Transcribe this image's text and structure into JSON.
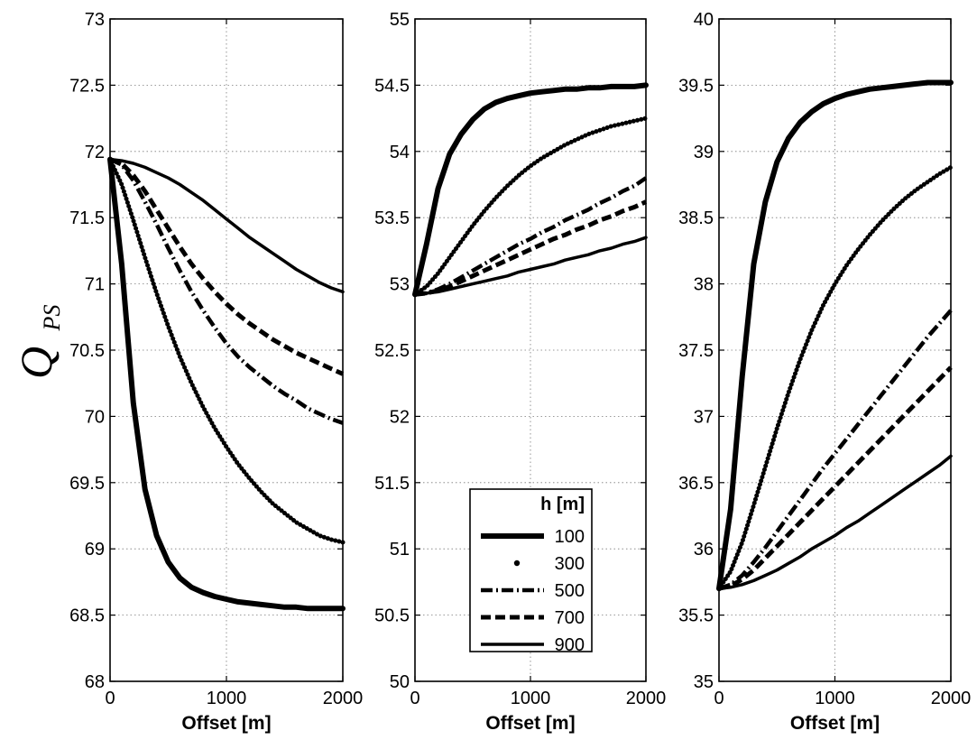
{
  "figure": {
    "y_label_main": "Q",
    "y_label_sub": "PS"
  },
  "colors": {
    "line": "#000000",
    "grid": "#7a7a7a",
    "background": "#ffffff"
  },
  "styles": {
    "100": "thick-solid",
    "300": "dotted",
    "500": "dash-dot",
    "700": "dashed",
    "900": "solid"
  },
  "chart_data": [
    {
      "type": "line",
      "xlabel": "Offset [m]",
      "ylabel": "Q PS",
      "xlim": [
        0,
        2000
      ],
      "ylim": [
        68,
        73
      ],
      "xticks": [
        0,
        1000,
        2000
      ],
      "xtick_labels": [
        "0",
        "1000",
        "2000"
      ],
      "yticks": [
        68,
        68.5,
        69,
        69.5,
        70,
        70.5,
        71,
        71.5,
        72,
        72.5,
        73
      ],
      "ytick_labels": [
        "68",
        "68.5",
        "69",
        "69.5",
        "70",
        "70.5",
        "71",
        "71.5",
        "72",
        "72.5",
        "73"
      ],
      "grid": true,
      "x": [
        0,
        100,
        200,
        300,
        400,
        500,
        600,
        700,
        800,
        900,
        1000,
        1100,
        1200,
        1300,
        1400,
        1500,
        1600,
        1700,
        1800,
        1900,
        2000
      ],
      "series": [
        {
          "name": "100",
          "values": [
            71.94,
            71.15,
            70.1,
            69.45,
            69.1,
            68.9,
            68.78,
            68.71,
            68.67,
            68.64,
            68.62,
            68.6,
            68.59,
            68.58,
            68.57,
            68.56,
            68.56,
            68.55,
            68.55,
            68.55,
            68.55
          ]
        },
        {
          "name": "300",
          "values": [
            71.94,
            71.75,
            71.48,
            71.2,
            70.93,
            70.68,
            70.45,
            70.25,
            70.07,
            69.91,
            69.77,
            69.64,
            69.53,
            69.43,
            69.34,
            69.27,
            69.2,
            69.15,
            69.1,
            69.07,
            69.05
          ]
        },
        {
          "name": "500",
          "values": [
            71.94,
            71.9,
            71.78,
            71.62,
            71.45,
            71.27,
            71.1,
            70.94,
            70.8,
            70.67,
            70.55,
            70.45,
            70.37,
            70.3,
            70.23,
            70.17,
            70.12,
            70.06,
            70.02,
            69.98,
            69.95
          ]
        },
        {
          "name": "700",
          "values": [
            71.94,
            71.91,
            71.82,
            71.7,
            71.56,
            71.42,
            71.28,
            71.15,
            71.04,
            70.94,
            70.85,
            70.77,
            70.7,
            70.64,
            70.58,
            70.53,
            70.48,
            70.44,
            70.4,
            70.36,
            70.32
          ]
        },
        {
          "name": "900",
          "values": [
            71.94,
            71.93,
            71.91,
            71.88,
            71.84,
            71.8,
            71.75,
            71.69,
            71.63,
            71.56,
            71.49,
            71.42,
            71.35,
            71.29,
            71.23,
            71.17,
            71.11,
            71.06,
            71.01,
            70.97,
            70.94
          ]
        }
      ]
    },
    {
      "type": "line",
      "xlabel": "Offset [m]",
      "xlim": [
        0,
        2000
      ],
      "ylim": [
        50,
        55
      ],
      "xticks": [
        0,
        1000,
        2000
      ],
      "xtick_labels": [
        "0",
        "1000",
        "2000"
      ],
      "yticks": [
        50,
        50.5,
        51,
        51.5,
        52,
        52.5,
        53,
        53.5,
        54,
        54.5,
        55
      ],
      "ytick_labels": [
        "50",
        "50.5",
        "51",
        "51.5",
        "52",
        "52.5",
        "53",
        "53.5",
        "54",
        "54.5",
        "55"
      ],
      "grid": true,
      "legend": {
        "title": "h [m]",
        "position": "lower-right"
      },
      "x": [
        0,
        100,
        200,
        300,
        400,
        500,
        600,
        700,
        800,
        900,
        1000,
        1100,
        1200,
        1300,
        1400,
        1500,
        1600,
        1700,
        1800,
        1900,
        2000
      ],
      "series": [
        {
          "name": "100",
          "values": [
            52.92,
            53.3,
            53.72,
            53.98,
            54.13,
            54.24,
            54.32,
            54.37,
            54.4,
            54.42,
            54.44,
            54.45,
            54.46,
            54.47,
            54.47,
            54.48,
            54.48,
            54.49,
            54.49,
            54.49,
            54.5
          ]
        },
        {
          "name": "300",
          "values": [
            52.92,
            52.98,
            53.08,
            53.2,
            53.32,
            53.44,
            53.55,
            53.65,
            53.74,
            53.82,
            53.89,
            53.95,
            54.0,
            54.05,
            54.09,
            54.13,
            54.16,
            54.19,
            54.21,
            54.23,
            54.25
          ]
        },
        {
          "name": "500",
          "values": [
            52.92,
            52.93,
            52.96,
            53.0,
            53.05,
            53.1,
            53.15,
            53.2,
            53.25,
            53.3,
            53.34,
            53.39,
            53.43,
            53.48,
            53.52,
            53.56,
            53.61,
            53.65,
            53.7,
            53.74,
            53.8
          ]
        },
        {
          "name": "700",
          "values": [
            52.92,
            52.93,
            52.95,
            52.98,
            53.02,
            53.06,
            53.1,
            53.14,
            53.18,
            53.22,
            53.26,
            53.3,
            53.34,
            53.37,
            53.41,
            53.44,
            53.48,
            53.51,
            53.55,
            53.58,
            53.62
          ]
        },
        {
          "name": "900",
          "values": [
            52.92,
            52.93,
            52.94,
            52.96,
            52.98,
            53.0,
            53.02,
            53.04,
            53.06,
            53.09,
            53.11,
            53.13,
            53.15,
            53.18,
            53.2,
            53.22,
            53.25,
            53.27,
            53.3,
            53.32,
            53.35
          ]
        }
      ]
    },
    {
      "type": "line",
      "xlabel": "Offset [m]",
      "xlim": [
        0,
        2000
      ],
      "ylim": [
        35,
        40
      ],
      "xticks": [
        0,
        1000,
        2000
      ],
      "xtick_labels": [
        "0",
        "1000",
        "2000"
      ],
      "yticks": [
        35,
        35.5,
        36,
        36.5,
        37,
        37.5,
        38,
        38.5,
        39,
        39.5,
        40
      ],
      "ytick_labels": [
        "35",
        "35.5",
        "36",
        "36.5",
        "37",
        "37.5",
        "38",
        "38.5",
        "39",
        "39.5",
        "40"
      ],
      "grid": true,
      "x": [
        0,
        100,
        200,
        300,
        400,
        500,
        600,
        700,
        800,
        900,
        1000,
        1100,
        1200,
        1300,
        1400,
        1500,
        1600,
        1700,
        1800,
        1900,
        2000
      ],
      "series": [
        {
          "name": "100",
          "values": [
            35.7,
            36.3,
            37.3,
            38.15,
            38.62,
            38.92,
            39.1,
            39.22,
            39.3,
            39.36,
            39.4,
            39.43,
            39.45,
            39.47,
            39.48,
            39.49,
            39.5,
            39.51,
            39.52,
            39.52,
            39.52
          ]
        },
        {
          "name": "300",
          "values": [
            35.7,
            35.83,
            36.05,
            36.33,
            36.62,
            36.91,
            37.18,
            37.43,
            37.65,
            37.84,
            38.0,
            38.14,
            38.26,
            38.37,
            38.47,
            38.56,
            38.64,
            38.71,
            38.77,
            38.83,
            38.88
          ]
        },
        {
          "name": "500",
          "values": [
            35.7,
            35.73,
            35.8,
            35.9,
            36.01,
            36.13,
            36.25,
            36.37,
            36.49,
            36.61,
            36.72,
            36.83,
            36.94,
            37.05,
            37.16,
            37.27,
            37.38,
            37.49,
            37.6,
            37.7,
            37.8
          ]
        },
        {
          "name": "700",
          "values": [
            35.7,
            35.72,
            35.77,
            35.84,
            35.93,
            36.02,
            36.11,
            36.2,
            36.29,
            36.38,
            36.47,
            36.56,
            36.65,
            36.74,
            36.83,
            36.92,
            37.01,
            37.1,
            37.19,
            37.28,
            37.37
          ]
        },
        {
          "name": "900",
          "values": [
            35.7,
            35.71,
            35.73,
            35.76,
            35.8,
            35.84,
            35.89,
            35.94,
            36.0,
            36.05,
            36.1,
            36.16,
            36.21,
            36.27,
            36.33,
            36.39,
            36.45,
            36.51,
            36.57,
            36.63,
            36.7
          ]
        }
      ]
    }
  ]
}
